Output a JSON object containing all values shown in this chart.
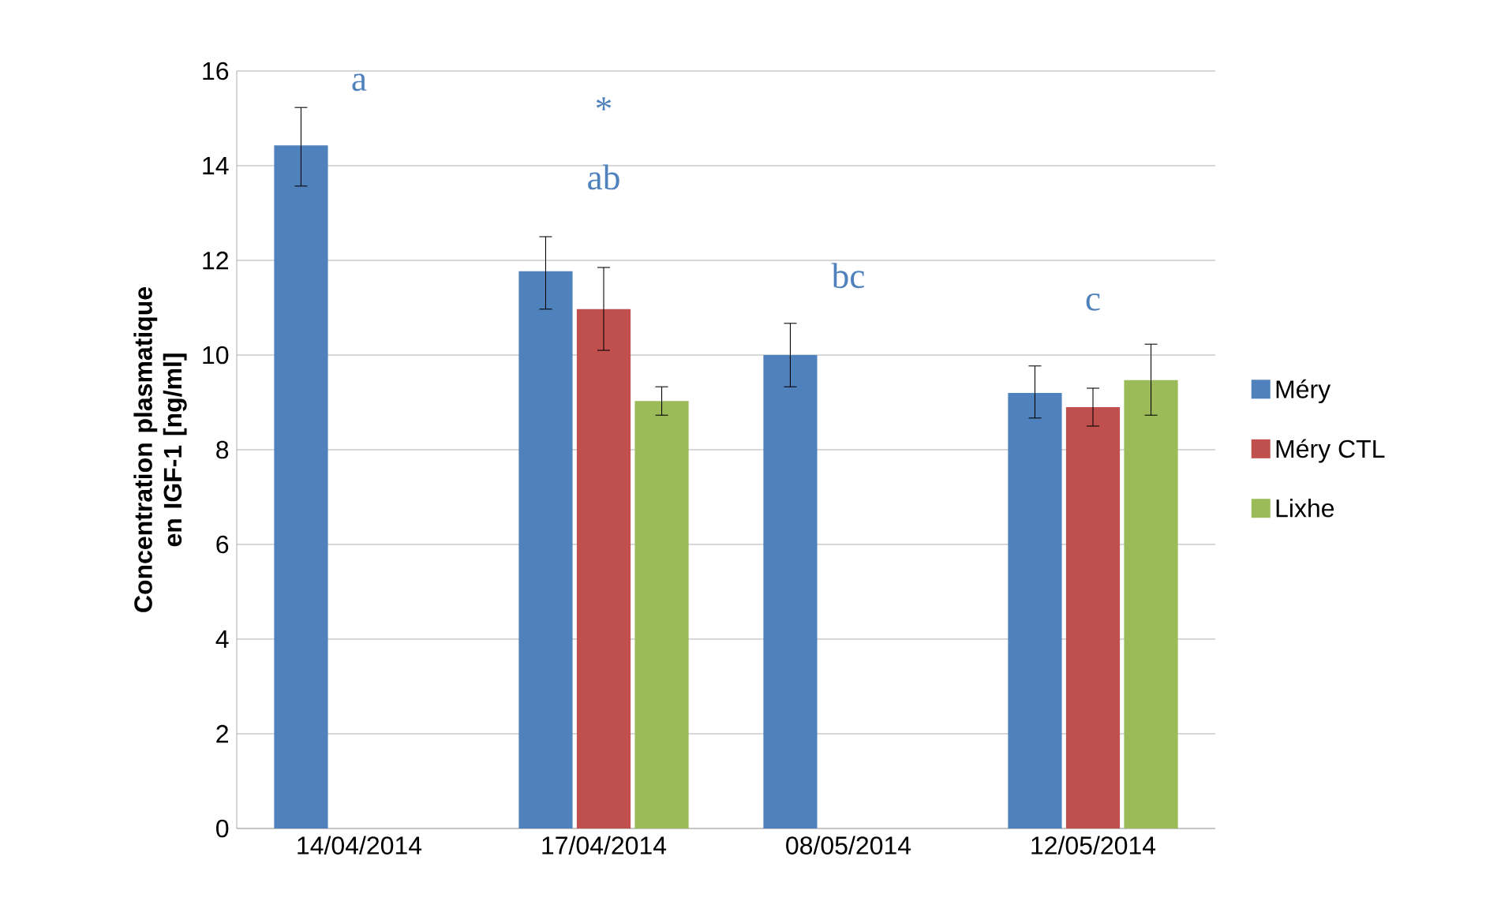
{
  "chart_data": {
    "type": "bar",
    "ylabel": "Concentration plasmatique en IGF-1 [ng/ml]",
    "categories": [
      "14/04/2014",
      "17/04/2014",
      "08/05/2014",
      "12/05/2014"
    ],
    "series": [
      {
        "name": "Méry",
        "color": "#4f81bd",
        "values": [
          14.43,
          11.77,
          10.0,
          9.2
        ],
        "errors": [
          [
            13.57,
            15.23
          ],
          [
            10.97,
            12.5
          ],
          [
            9.33,
            10.67
          ],
          [
            8.67,
            9.77
          ]
        ]
      },
      {
        "name": "Méry CTL",
        "color": "#c0504d",
        "values": [
          null,
          10.97,
          null,
          8.9
        ],
        "errors": [
          null,
          [
            10.1,
            11.85
          ],
          null,
          [
            8.5,
            9.3
          ]
        ]
      },
      {
        "name": "Lixhe",
        "color": "#9bbb59",
        "values": [
          null,
          9.03,
          null,
          9.47
        ],
        "errors": [
          null,
          [
            8.73,
            9.33
          ],
          null,
          [
            8.73,
            10.23
          ]
        ]
      }
    ],
    "ylim": [
      0,
      16
    ],
    "yticks": [
      0,
      2,
      4,
      6,
      8,
      10,
      12,
      14,
      16
    ],
    "grid": "y",
    "legend": "right",
    "annotations": [
      "a",
      "*",
      "ab",
      "bc",
      "c"
    ]
  }
}
